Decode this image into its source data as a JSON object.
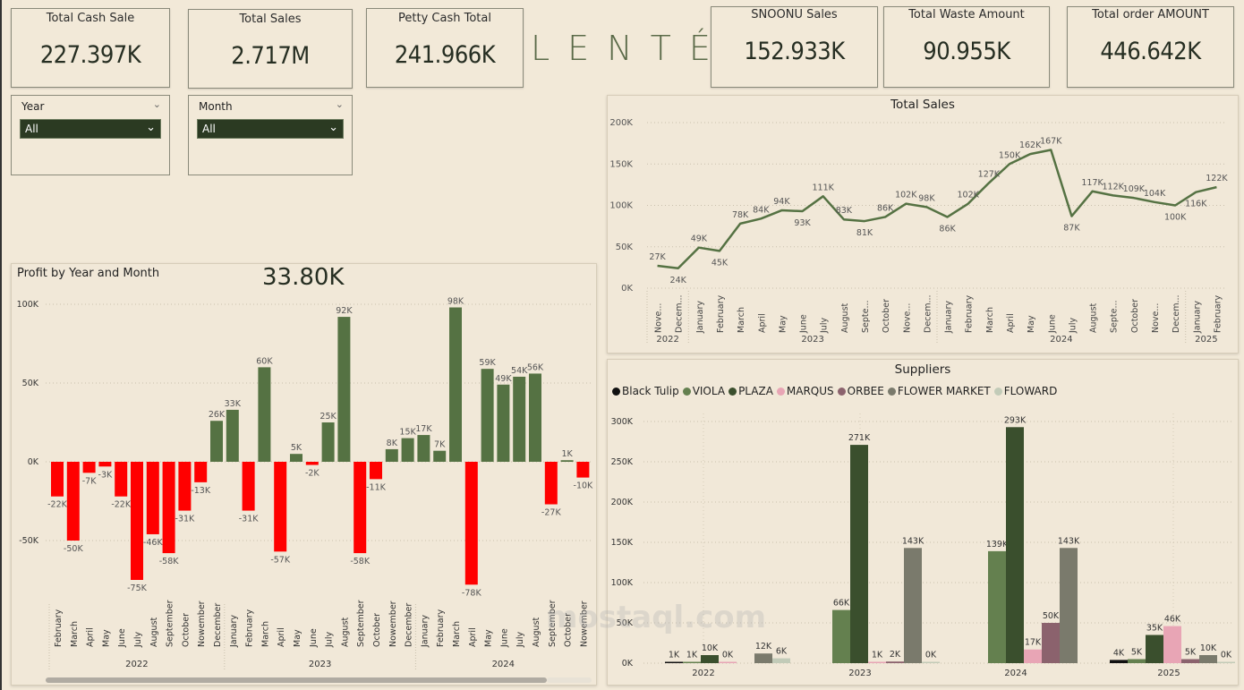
{
  "kpis": [
    {
      "title": "Total Cash Sale",
      "value": "227.397K"
    },
    {
      "title": "Total Sales",
      "value": "2.717M"
    },
    {
      "title": "Petty Cash Total",
      "value": "241.966K"
    },
    {
      "title": "SNOONU Sales",
      "value": "152.933K"
    },
    {
      "title": "Total Waste Amount",
      "value": "90.955K"
    },
    {
      "title": "Total order AMOUNT",
      "value": "446.642K"
    }
  ],
  "logo": "LENTÉ",
  "slicers": {
    "year": {
      "label": "Year",
      "selected": "All"
    },
    "month": {
      "label": "Month",
      "selected": "All"
    }
  },
  "watermark": "mostaql.com",
  "colors": {
    "positive": "#557243",
    "negative": "#ff0000",
    "line": "#557243"
  },
  "chart_data": [
    {
      "id": "total-sales",
      "type": "line",
      "title": "Total Sales",
      "xlabel": "",
      "ylabel": "",
      "ylim": [
        0,
        200000
      ],
      "yticks": [
        "0K",
        "50K",
        "100K",
        "150K",
        "200K"
      ],
      "grid": true,
      "categories": [
        "Nove...",
        "Decem...",
        "January",
        "February",
        "March",
        "April",
        "May",
        "June",
        "July",
        "August",
        "Septe...",
        "October",
        "Nove...",
        "Decem...",
        "January",
        "February",
        "March",
        "April",
        "May",
        "June",
        "July",
        "August",
        "Septe...",
        "October",
        "Nove...",
        "Decem...",
        "January",
        "February"
      ],
      "year_groups": [
        {
          "label": "2022",
          "count": 2
        },
        {
          "label": "2023",
          "count": 12
        },
        {
          "label": "2024",
          "count": 12
        },
        {
          "label": "2025",
          "count": 2
        }
      ],
      "values": [
        27000,
        24000,
        49000,
        45000,
        78000,
        84000,
        94000,
        93000,
        111000,
        83000,
        81000,
        86000,
        102000,
        98000,
        86000,
        102000,
        127000,
        150000,
        162000,
        167000,
        87000,
        117000,
        112000,
        109000,
        104000,
        100000,
        116000,
        122000
      ],
      "labels": [
        "27K",
        "24K",
        "49K",
        "45K",
        "78K",
        "84K",
        "94K",
        "93K",
        "111K",
        "83K",
        "81K",
        "86K",
        "102K",
        "98K",
        "86K",
        "102K",
        "127K",
        "150K",
        "162K",
        "167K",
        "87K",
        "117K",
        "112K",
        "109K",
        "104K",
        "100K",
        "116K",
        "122K"
      ]
    },
    {
      "id": "profit",
      "type": "bar",
      "title": "Profit by Year and Month",
      "headline_value": "33.80K",
      "xlabel": "",
      "ylabel": "",
      "ylim": [
        -85000,
        100000
      ],
      "yticks": [
        {
          "v": 100000,
          "t": "100K"
        },
        {
          "v": 50000,
          "t": "50K"
        },
        {
          "v": 0,
          "t": "0K"
        },
        {
          "v": -50000,
          "t": "-50K"
        }
      ],
      "grid": true,
      "categories": [
        "February",
        "March",
        "April",
        "May",
        "June",
        "July",
        "August",
        "September",
        "October",
        "Nowember",
        "December",
        "January",
        "February",
        "March",
        "April",
        "May",
        "June",
        "July",
        "August",
        "September",
        "October",
        "Nowember",
        "December",
        "January",
        "February",
        "March",
        "April",
        "May",
        "June",
        "July",
        "August",
        "September",
        "October",
        "Nowember"
      ],
      "year_groups": [
        {
          "label": "2022",
          "count": 11
        },
        {
          "label": "2023",
          "count": 12
        },
        {
          "label": "2024",
          "count": 11
        }
      ],
      "values": [
        -22000,
        -50000,
        -7000,
        -3000,
        -22000,
        -75000,
        -46000,
        -58000,
        -31000,
        -13000,
        26000,
        33000,
        -31000,
        60000,
        -57000,
        5000,
        -2000,
        25000,
        92000,
        -58000,
        -11000,
        8000,
        15000,
        17000,
        7000,
        98000,
        -78000,
        59000,
        49000,
        54000,
        56000,
        -27000,
        1000,
        -10000
      ],
      "labels": [
        "-22K",
        "-50K",
        "-7K",
        "-3K",
        "-22K",
        "-75K",
        "-46K",
        "-58K",
        "-31K",
        "-13K",
        "26K",
        "33K",
        "-31K",
        "60K",
        "-57K",
        "5K",
        "-2K",
        "25K",
        "92K",
        "-58K",
        "-11K",
        "8K",
        "15K",
        "17K",
        "7K",
        "98K",
        "-78K",
        "59K",
        "49K",
        "54K",
        "56K",
        "-27K",
        "1K",
        "-10K"
      ]
    },
    {
      "id": "suppliers",
      "type": "bar",
      "title": "Suppliers",
      "legend_position": "top-left",
      "ylim": [
        0,
        320000
      ],
      "yticks": [
        "0K",
        "50K",
        "100K",
        "150K",
        "200K",
        "250K",
        "300K"
      ],
      "grid": true,
      "categories": [
        "2022",
        "2023",
        "2024",
        "2025"
      ],
      "series": [
        {
          "name": "Black Tulip",
          "color": "#111111",
          "values": [
            1000,
            null,
            null,
            4000
          ],
          "labels": [
            "1K",
            "",
            "",
            "4K"
          ]
        },
        {
          "name": "VIOLA",
          "color": "#64804f",
          "values": [
            1000,
            66000,
            139000,
            5000
          ],
          "labels": [
            "1K",
            "66K",
            "139K",
            "5K"
          ]
        },
        {
          "name": "PLAZA",
          "color": "#3a4f2d",
          "values": [
            10000,
            271000,
            293000,
            35000
          ],
          "labels": [
            "10K",
            "271K",
            "293K",
            "35K"
          ]
        },
        {
          "name": "MARQUS",
          "color": "#e8a5b5",
          "values": [
            0,
            1000,
            17000,
            46000
          ],
          "labels": [
            "0K",
            "1K",
            "17K",
            "46K"
          ]
        },
        {
          "name": "ORBEE",
          "color": "#8b626d",
          "values": [
            null,
            2000,
            50000,
            5000
          ],
          "labels": [
            "",
            "2K",
            "50K",
            "5K"
          ]
        },
        {
          "name": "FLOWER MARKET",
          "color": "#7a7a6c",
          "values": [
            12000,
            143000,
            143000,
            10000
          ],
          "labels": [
            "12K",
            "143K",
            "143K",
            "10K"
          ]
        },
        {
          "name": "FLOWARD",
          "color": "#c2cbb8",
          "values": [
            6000,
            0,
            null,
            0
          ],
          "labels": [
            "6K",
            "0K",
            "",
            "0K"
          ]
        }
      ]
    }
  ]
}
